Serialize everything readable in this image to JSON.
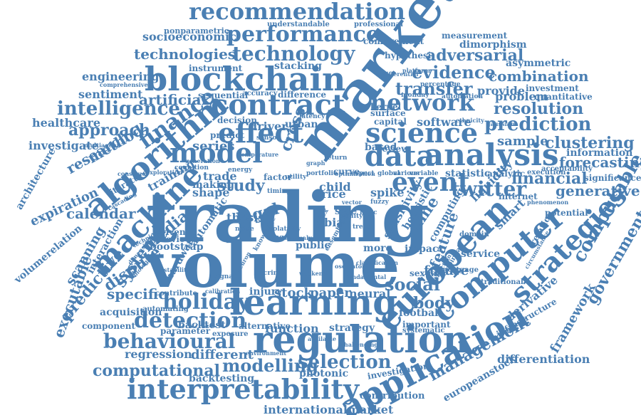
{
  "style": {
    "word_color": "#4a7fb3",
    "background": "#ffffff"
  },
  "words": [
    "trading",
    "volume",
    "market",
    "learning",
    "regulation",
    "interpretability",
    "application",
    "european",
    "blockchain",
    "contract",
    "science",
    "analysis",
    "data",
    "algorithm",
    "machine",
    "model",
    "effect",
    "event",
    "network",
    "computer",
    "strategies",
    "recommendation",
    "performance",
    "technology",
    "technologies",
    "intelligence",
    "finance",
    "approach",
    "prediction",
    "resolution",
    "evidence",
    "combination",
    "adversarial",
    "transfer",
    "twitter",
    "financial",
    "clustering",
    "forecasting",
    "generative",
    "management",
    "computable",
    "government",
    "framework",
    "differentiation",
    "holiday",
    "detection",
    "behavioural",
    "modelling",
    "selection",
    "computational",
    "regression",
    "different",
    "internationalmarket",
    "europeanstock",
    "investigation",
    "contribution",
    "photonic",
    "backtesting",
    "social",
    "stock",
    "paper",
    "neural",
    "body",
    "future",
    "football",
    "predictive",
    "dispute",
    "scanning",
    "executable",
    "calendar",
    "system",
    "media",
    "specific",
    "research",
    "method",
    "investigate",
    "healthcare",
    "sentiment",
    "artificial",
    "engineering",
    "expiration",
    "architecture",
    "volumerelation",
    "socioeconomic",
    "nonparametric",
    "dimorphism",
    "measurement",
    "comovement",
    "asymmetric",
    "investment",
    "quantitative",
    "problem",
    "provide",
    "sample",
    "information",
    "acceptability",
    "significance",
    "series",
    "study",
    "legal",
    "injury",
    "feature",
    "time",
    "function",
    "strategy",
    "bootstrap",
    "acquisition",
    "component",
    "parameter",
    "liquidity",
    "smart",
    "derivative",
    "infrastructure",
    "software",
    "kernel",
    "surface",
    "capital",
    "review",
    "based",
    "urban",
    "driver",
    "decision",
    "predict",
    "stacking",
    "instrument",
    "accuracy",
    "difference",
    "sequential",
    "understandable",
    "professional",
    "hypothesi",
    "interaction",
    "statistic",
    "analytic",
    "execution",
    "potential",
    "internet",
    "service",
    "impact",
    "sensitivity",
    "heuristic",
    "computing",
    "relation",
    "spike",
    "price",
    "child",
    "shape",
    "trade",
    "making",
    "training",
    "literature",
    "driven",
    "previous",
    "automatic",
    "hardware",
    "contribute",
    "automating",
    "backtest",
    "exposure",
    "alternative",
    "public",
    "more",
    "sexual",
    "important",
    "systematic",
    "traditional",
    "mortgage",
    "domain",
    "thesis",
    "cross",
    "bias",
    "sale",
    "sensor",
    "financial stability",
    "temperature",
    "generation",
    "cognition",
    "portfolio",
    "optimization",
    "latency",
    "graph",
    "fuzzy",
    "vector",
    "logic",
    "trend",
    "index",
    "monday",
    "percentage",
    "automation",
    "ethnicity",
    "platform",
    "differential",
    "comprehensive",
    "multiagent",
    "construct",
    "cascading",
    "exploration",
    "knowledge",
    "crime",
    "weekend",
    "oscillator",
    "fundamental",
    "ensemble",
    "classification",
    "neuron",
    "signal",
    "calibration",
    "stability",
    "biological",
    "dimensional",
    "technique",
    "challenging",
    "environment",
    "available",
    "phenomenon",
    "circumstance",
    "extraction",
    "gaussian",
    "empirical",
    "volatility",
    "anomaly",
    "noise",
    "regime",
    "return",
    "equity",
    "curve",
    "aspect",
    "global",
    "variable",
    "various",
    "utility",
    "timing",
    "range",
    "energy",
    "factor"
  ]
}
